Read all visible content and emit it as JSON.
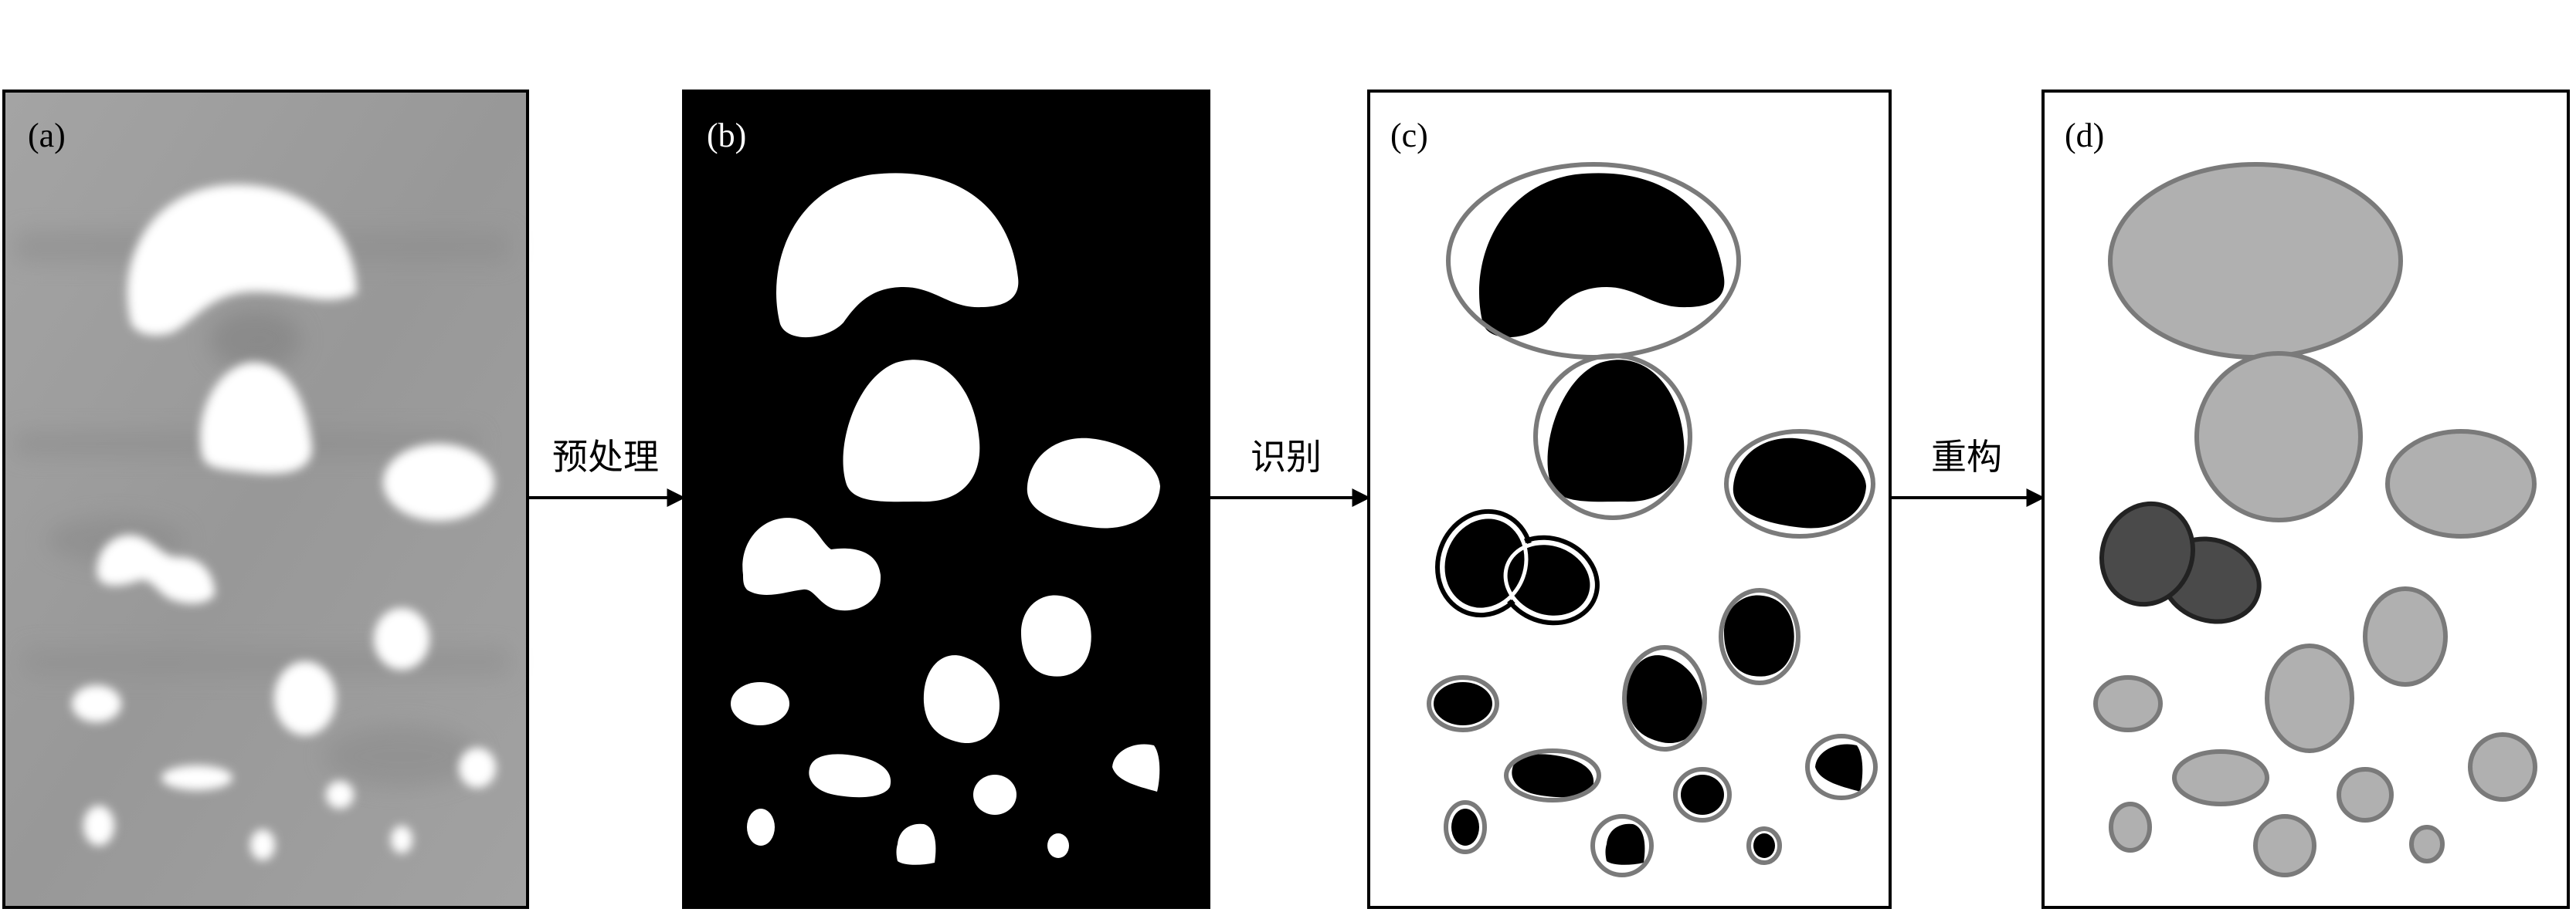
{
  "panels": {
    "a": {
      "label": "(a)"
    },
    "b": {
      "label": "(b)"
    },
    "c": {
      "label": "(c)"
    },
    "d": {
      "label": "(d)"
    }
  },
  "steps": {
    "preprocess": "预处理",
    "identify": "识别",
    "reconstruct": "重构"
  },
  "colors": {
    "raw_background": "#9c9c9c",
    "binary_background": "#000000",
    "particle_white": "#ffffff",
    "ellipse_stroke": "#7a7a7a",
    "reconstructed_fill": "#b0b0b0",
    "overlap_fill": "#4a4a4a"
  }
}
